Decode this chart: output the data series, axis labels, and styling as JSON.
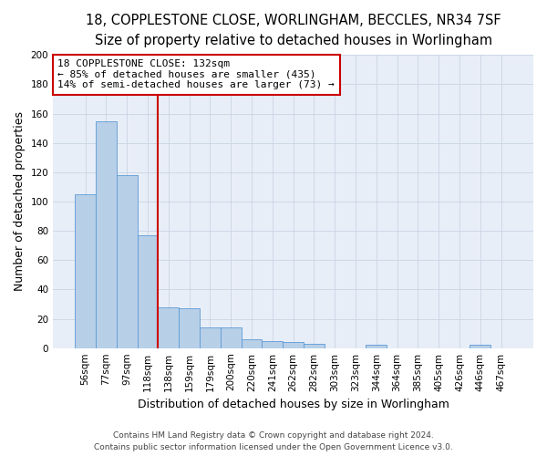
{
  "title": "18, COPPLESTONE CLOSE, WORLINGHAM, BECCLES, NR34 7SF",
  "subtitle": "Size of property relative to detached houses in Worlingham",
  "xlabel": "Distribution of detached houses by size in Worlingham",
  "ylabel": "Number of detached properties",
  "categories": [
    "56sqm",
    "77sqm",
    "97sqm",
    "118sqm",
    "138sqm",
    "159sqm",
    "179sqm",
    "200sqm",
    "220sqm",
    "241sqm",
    "262sqm",
    "282sqm",
    "303sqm",
    "323sqm",
    "344sqm",
    "364sqm",
    "385sqm",
    "405sqm",
    "426sqm",
    "446sqm",
    "467sqm"
  ],
  "values": [
    105,
    155,
    118,
    77,
    28,
    27,
    14,
    14,
    6,
    5,
    4,
    3,
    0,
    0,
    2,
    0,
    0,
    0,
    0,
    2,
    0
  ],
  "bar_color": "#b8cfe8",
  "bar_edge_color": "#5b9bd5",
  "vline_color": "#cc0000",
  "annotation_text": "18 COPPLESTONE CLOSE: 132sqm\n← 85% of detached houses are smaller (435)\n14% of semi-detached houses are larger (73) →",
  "annotation_box_facecolor": "#ffffff",
  "annotation_box_edgecolor": "#cc0000",
  "ylim": [
    0,
    200
  ],
  "yticks": [
    0,
    20,
    40,
    60,
    80,
    100,
    120,
    140,
    160,
    180,
    200
  ],
  "footer_line1": "Contains HM Land Registry data © Crown copyright and database right 2024.",
  "footer_line2": "Contains public sector information licensed under the Open Government Licence v3.0.",
  "bg_color": "#ffffff",
  "axes_bg_color": "#e8eef7",
  "grid_color": "#c8d4e4",
  "title_fontsize": 10.5,
  "subtitle_fontsize": 9.5,
  "axis_label_fontsize": 9,
  "tick_fontsize": 7.5,
  "annotation_fontsize": 8,
  "footer_fontsize": 6.5
}
